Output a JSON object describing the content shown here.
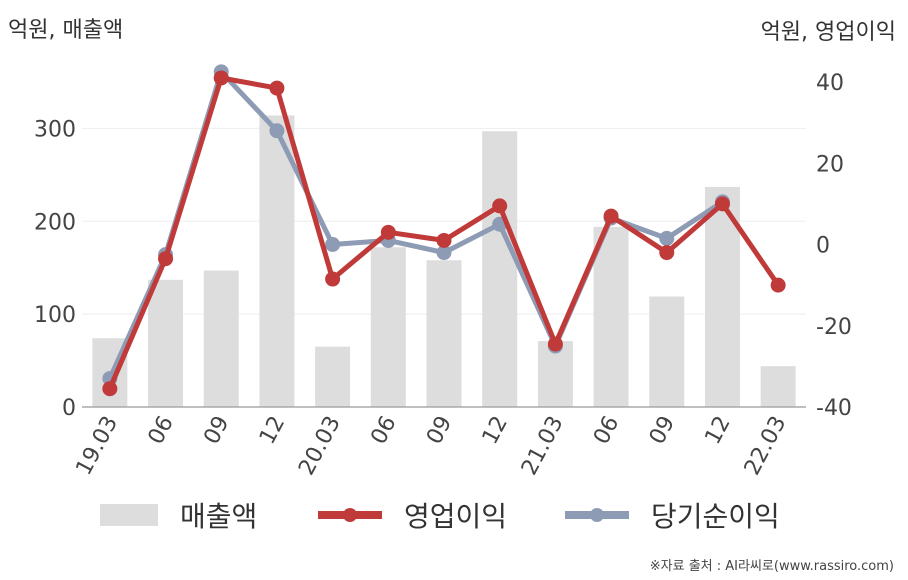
{
  "unit_left": "억원, 매출액",
  "unit_right": "억원, 영업이익",
  "source": "※자료 출처 : AI라씨로(www.rassiro.com)",
  "colors": {
    "bar": "#dddddd",
    "op": "#c03a3a",
    "net": "#8e9bb5",
    "grid": "#eeeeee",
    "axis": "#aaaaaa"
  },
  "chart_data": {
    "type": "bar",
    "categories": [
      "19.03",
      "06",
      "09",
      "12",
      "20.03",
      "06",
      "09",
      "12",
      "21.03",
      "06",
      "09",
      "12",
      "22.03"
    ],
    "y_left": {
      "ticks": [
        "0",
        "100",
        "200",
        "300"
      ],
      "ylim": [
        0,
        350
      ]
    },
    "y_right": {
      "ticks": [
        "-40",
        "-20",
        "0",
        "20",
        "40"
      ],
      "ylim": [
        -40,
        40
      ]
    },
    "series": [
      {
        "name": "매출액",
        "type": "bar",
        "axis": "left",
        "values": [
          74,
          137,
          147,
          314,
          65,
          172,
          158,
          297,
          71,
          194,
          119,
          237,
          44
        ]
      },
      {
        "name": "영업이익",
        "type": "line",
        "axis": "right",
        "values": [
          -35.5,
          -3.5,
          41,
          38.5,
          -8.5,
          3,
          1,
          9.5,
          -24.5,
          7,
          -2,
          10,
          -10
        ]
      },
      {
        "name": "당기순이익",
        "type": "line",
        "axis": "right",
        "values": [
          -33,
          -2.5,
          42.5,
          28,
          0,
          1,
          -2,
          5,
          -25,
          6.5,
          1.5,
          10.5,
          null
        ]
      }
    ],
    "grid": true,
    "legend": "bottom"
  }
}
